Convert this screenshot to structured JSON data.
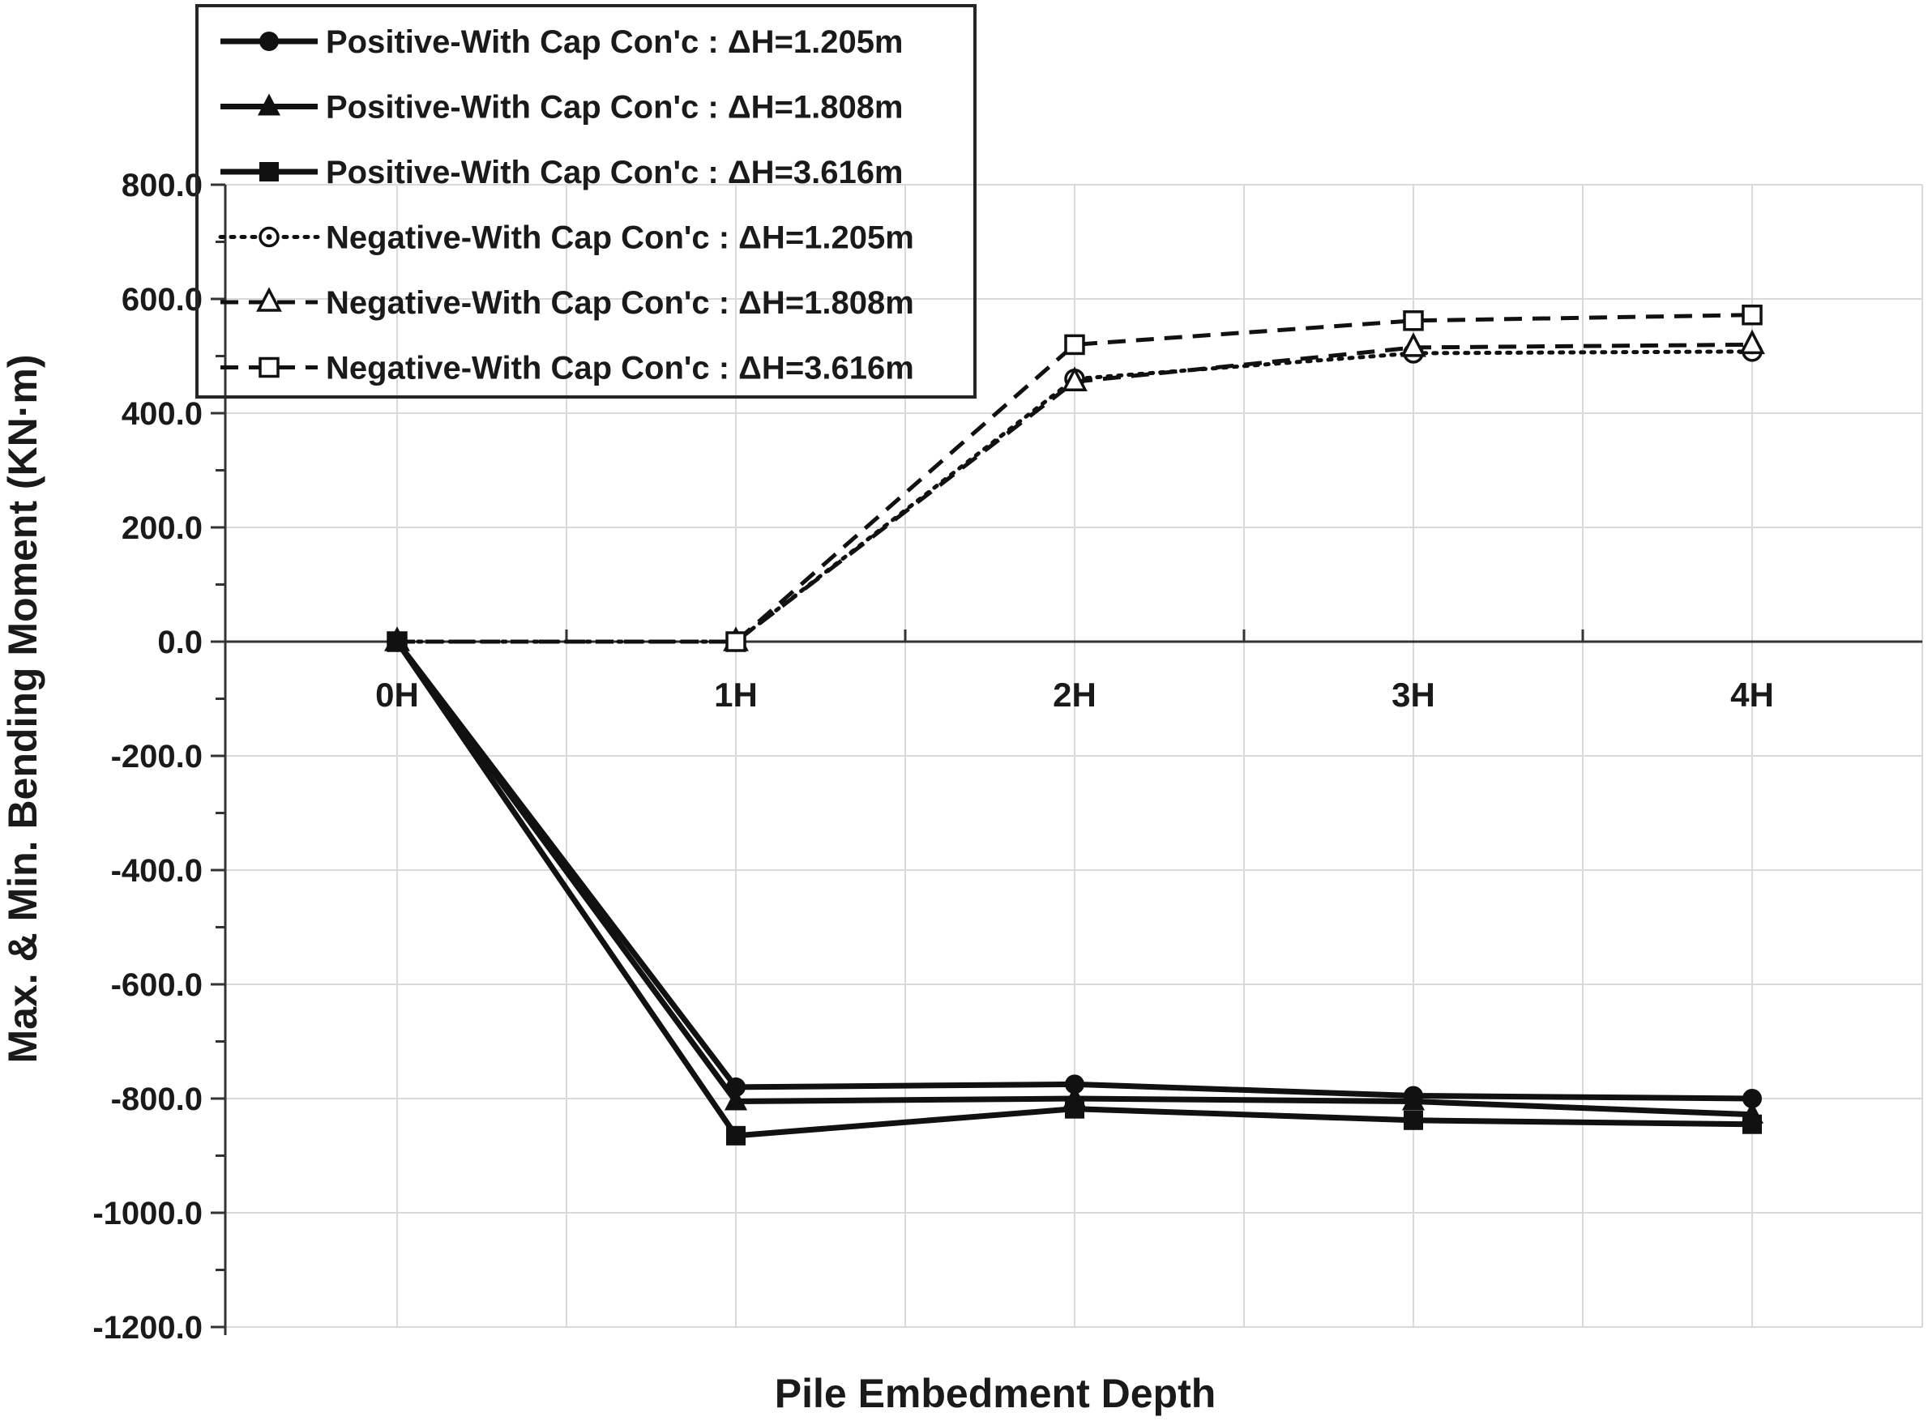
{
  "chart_data": {
    "type": "line",
    "title": "",
    "xlabel": "Pile Embedment Depth",
    "ylabel": "Max. & Min. Bending Moment (KN·m)",
    "categories": [
      "0H",
      "1H",
      "2H",
      "3H",
      "4H"
    ],
    "ylim": [
      -1200,
      800
    ],
    "y_tick_step": 200,
    "y_minor_tick_step": 100,
    "y_tick_labels": [
      "800.0",
      "600.0",
      "400.0",
      "200.0",
      "0.0",
      "-200.0",
      "-400.0",
      "-600.0",
      "-800.0",
      "-1000.0",
      "-1200.0"
    ],
    "grid": true,
    "legend_position": "top-left",
    "series": [
      {
        "name": "Positive-With Cap Con'c : ΔH=1.205m",
        "line": "solid",
        "marker": "filled-circle",
        "values": [
          0,
          -780,
          -775,
          -795,
          -800
        ]
      },
      {
        "name": "Positive-With Cap Con'c : ΔH=1.808m",
        "line": "solid",
        "marker": "filled-triangle",
        "values": [
          0,
          -805,
          -800,
          -805,
          -828
        ]
      },
      {
        "name": "Positive-With Cap Con'c : ΔH=3.616m",
        "line": "solid",
        "marker": "filled-square",
        "values": [
          0,
          -865,
          -818,
          -838,
          -845
        ]
      },
      {
        "name": "Negative-With Cap Con'c : ΔH=1.205m",
        "line": "dotted",
        "marker": "open-circle-dot",
        "values": [
          0,
          0,
          460,
          505,
          508
        ]
      },
      {
        "name": "Negative-With Cap Con'c : ΔH=1.808m",
        "line": "dashed",
        "marker": "open-triangle",
        "values": [
          0,
          0,
          455,
          515,
          520
        ]
      },
      {
        "name": "Negative-With Cap Con'c : ΔH=3.616m",
        "line": "dashed",
        "marker": "open-square",
        "values": [
          0,
          0,
          520,
          562,
          572
        ]
      }
    ],
    "colors": {
      "series": "#111111",
      "grid": "#d9d9d9",
      "axis": "#333333",
      "legend_border": "#262626"
    }
  }
}
